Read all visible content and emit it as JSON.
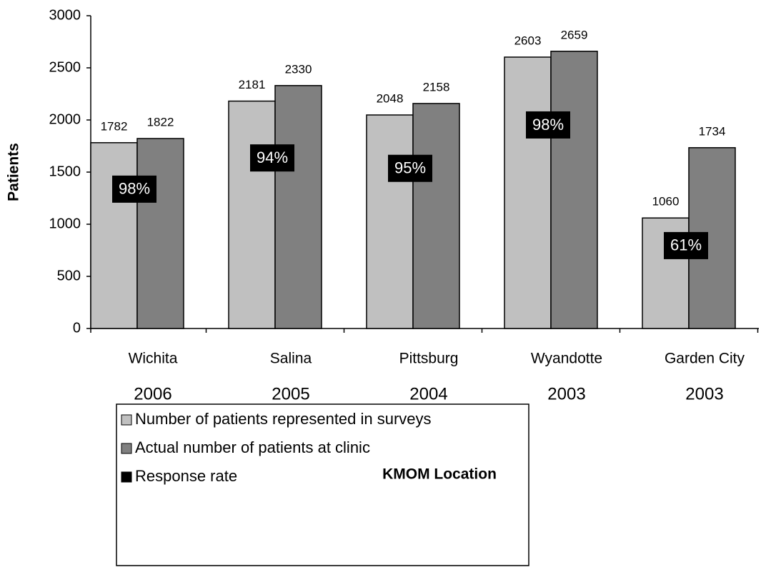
{
  "chart_data": {
    "type": "bar",
    "categories": [
      "Wichita",
      "Salina",
      "Pittsburg",
      "Wyandotte",
      "Garden City"
    ],
    "category_years": [
      "2006",
      "2005",
      "2004",
      "2003",
      "2003"
    ],
    "x_label": "KMOM Location",
    "y_label": "Patients",
    "series": [
      {
        "name": "Number of patients represented in surveys",
        "color": "#c0c0c0",
        "values": [
          1782,
          2181,
          2048,
          2603,
          1060
        ]
      },
      {
        "name": "Actual number of patients at clinic",
        "color": "#808080",
        "values": [
          1822,
          2330,
          2158,
          2659,
          1734
        ]
      },
      {
        "name": "Response rate",
        "color": "#000000",
        "values": [
          98,
          94,
          95,
          98,
          61
        ],
        "value_labels": [
          "98%",
          "94%",
          "95%",
          "98%",
          "61%"
        ]
      }
    ],
    "ylim": [
      0,
      3000
    ],
    "yticks": [
      0,
      500,
      1000,
      1500,
      2000,
      2500,
      3000
    ],
    "grid": false
  }
}
